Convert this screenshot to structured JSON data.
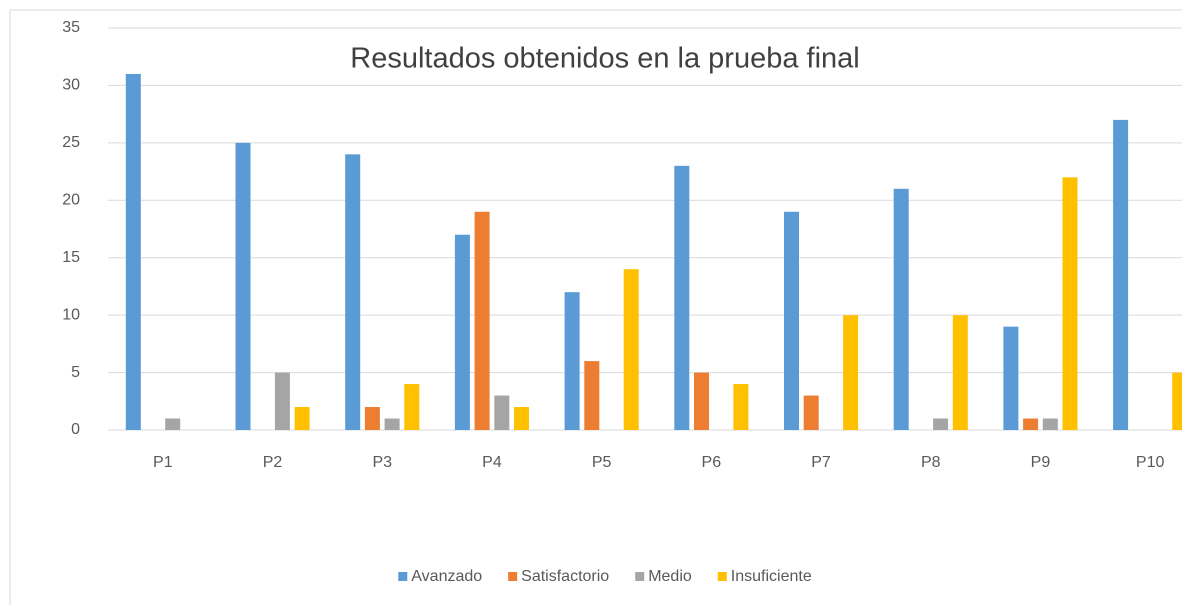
{
  "chart_data": {
    "type": "bar",
    "title": "Resultados obtenidos en la prueba final",
    "categories": [
      "P1",
      "P2",
      "P3",
      "P4",
      "P5",
      "P6",
      "P7",
      "P8",
      "P9",
      "P10"
    ],
    "series": [
      {
        "name": "Avanzado",
        "color": "#5b9bd5",
        "values": [
          31,
          25,
          24,
          17,
          12,
          23,
          19,
          21,
          9,
          27
        ]
      },
      {
        "name": "Satisfactorio",
        "color": "#ed7d31",
        "values": [
          0,
          0,
          2,
          19,
          6,
          5,
          3,
          0,
          1,
          0
        ]
      },
      {
        "name": "Medio",
        "color": "#a5a5a5",
        "values": [
          1,
          5,
          1,
          3,
          0,
          0,
          0,
          1,
          1,
          0
        ]
      },
      {
        "name": "Insuficiente",
        "color": "#ffc000",
        "values": [
          0,
          2,
          4,
          2,
          14,
          4,
          10,
          10,
          22,
          5
        ]
      }
    ],
    "ylim": [
      0,
      35
    ],
    "yticks": [
      0,
      5,
      10,
      15,
      20,
      25,
      30,
      35
    ],
    "grid": true,
    "legend": "bottom"
  }
}
